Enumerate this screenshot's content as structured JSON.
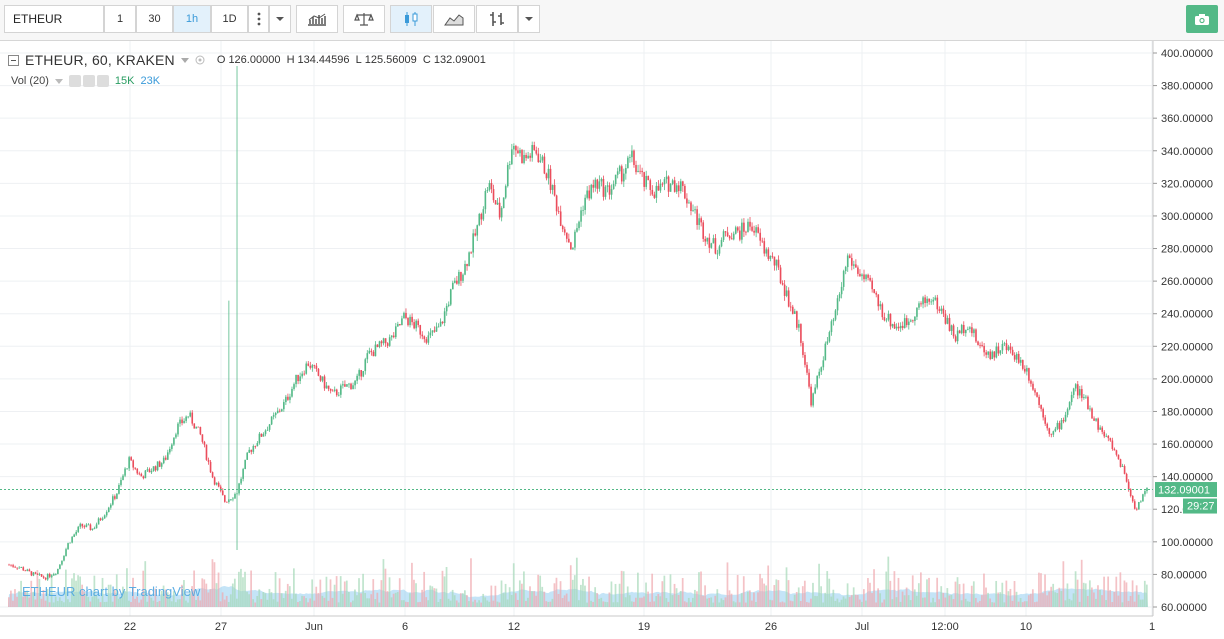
{
  "toolbar": {
    "symbol": "ETHEUR",
    "intervals": [
      "1",
      "30",
      "1h",
      "1D"
    ],
    "active_interval": "1h",
    "icons": [
      "more-vert-icon",
      "dropdown-icon",
      "indicators-icon",
      "compare-icon",
      "candles-icon",
      "area-icon",
      "bars-icon",
      "dropdown-icon"
    ],
    "camera_icon": "camera-icon"
  },
  "legend": {
    "title": "ETHEUR, 60, KRAKEN",
    "o_label": "O",
    "o_value": "126.00000",
    "h_label": "H",
    "h_value": "134.44596",
    "l_label": "L",
    "l_value": "125.56009",
    "c_label": "C",
    "c_value": "132.09001",
    "vol_label": "Vol (20)",
    "vol_value1": "15K",
    "vol_value2": "23K"
  },
  "watermark": "ETHEUR chart by TradingView",
  "price_tag": "132.09001",
  "time_tag": "29:27",
  "colors": {
    "up": "#53b987",
    "down": "#eb4d5c",
    "volume": "#7cc3ee",
    "accent": "#3a9ad9",
    "price_line": "#53b987"
  },
  "chart_data": {
    "type": "line",
    "title": "ETHEUR, 60, KRAKEN",
    "ylim": [
      60,
      400
    ],
    "y_ticks": [
      "400.00000",
      "380.00000",
      "360.00000",
      "340.00000",
      "320.00000",
      "300.00000",
      "280.00000",
      "260.00000",
      "240.00000",
      "220.00000",
      "200.00000",
      "180.00000",
      "160.00000",
      "140.00000",
      "120.00000",
      "100.00000",
      "80.00000",
      "60.00000"
    ],
    "x_tick_labels": [
      "22",
      "27",
      "Jun",
      "6",
      "12",
      "19",
      "26",
      "Jul",
      "12:00",
      "10",
      "1"
    ],
    "series": [
      {
        "values": [
          86,
          84,
          80,
          78,
          82,
          100,
          110,
          108,
          118,
          130,
          150,
          140,
          145,
          150,
          170,
          178,
          165,
          140,
          125,
          130,
          155,
          165,
          175,
          185,
          200,
          210,
          200,
          190,
          195,
          198,
          215,
          220,
          225,
          238,
          232,
          225,
          232,
          255,
          268,
          290,
          320,
          300,
          345,
          335,
          340,
          325,
          300,
          280,
          310,
          320,
          315,
          325,
          335,
          320,
          315,
          320,
          320,
          305,
          290,
          280,
          290,
          290,
          295,
          280,
          270,
          250,
          230,
          185,
          215,
          240,
          275,
          265,
          255,
          240,
          232,
          235,
          245,
          250,
          240,
          225,
          235,
          220,
          215,
          220,
          215,
          205,
          185,
          165,
          175,
          195,
          185,
          170,
          160,
          145,
          120,
          132
        ]
      }
    ]
  }
}
